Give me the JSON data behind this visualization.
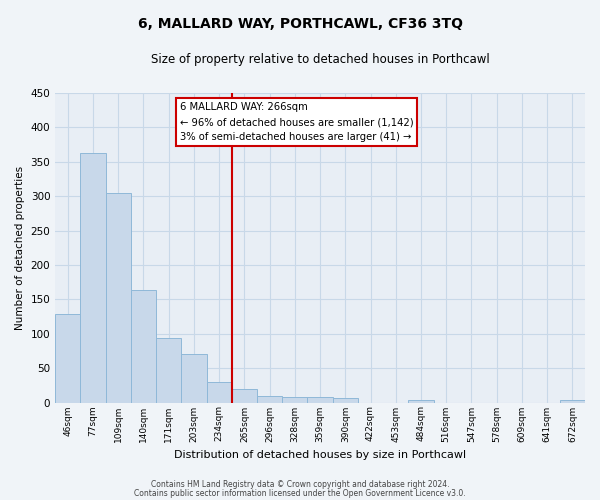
{
  "title": "6, MALLARD WAY, PORTHCAWL, CF36 3TQ",
  "subtitle": "Size of property relative to detached houses in Porthcawl",
  "xlabel": "Distribution of detached houses by size in Porthcawl",
  "ylabel": "Number of detached properties",
  "bin_labels": [
    "46sqm",
    "77sqm",
    "109sqm",
    "140sqm",
    "171sqm",
    "203sqm",
    "234sqm",
    "265sqm",
    "296sqm",
    "328sqm",
    "359sqm",
    "390sqm",
    "422sqm",
    "453sqm",
    "484sqm",
    "516sqm",
    "547sqm",
    "578sqm",
    "609sqm",
    "641sqm",
    "672sqm"
  ],
  "bar_heights": [
    128,
    363,
    304,
    163,
    94,
    70,
    30,
    20,
    10,
    8,
    8,
    7,
    0,
    0,
    4,
    0,
    0,
    0,
    0,
    0,
    3
  ],
  "bar_color": "#c8d8ea",
  "bar_edge_color": "#8fb8d8",
  "grid_color": "#c8d8e8",
  "bg_color": "#e8eef5",
  "fig_color": "#f0f4f8",
  "marker_line_color": "#cc0000",
  "marker_label": "6 MALLARD WAY: 266sqm",
  "annotation_line1": "← 96% of detached houses are smaller (1,142)",
  "annotation_line2": "3% of semi-detached houses are larger (41) →",
  "annotation_box_color": "#ffffff",
  "annotation_box_edge": "#cc0000",
  "ylim": [
    0,
    450
  ],
  "yticks": [
    0,
    50,
    100,
    150,
    200,
    250,
    300,
    350,
    400,
    450
  ],
  "footer_line1": "Contains HM Land Registry data © Crown copyright and database right 2024.",
  "footer_line2": "Contains public sector information licensed under the Open Government Licence v3.0.",
  "marker_bin_index": 7
}
